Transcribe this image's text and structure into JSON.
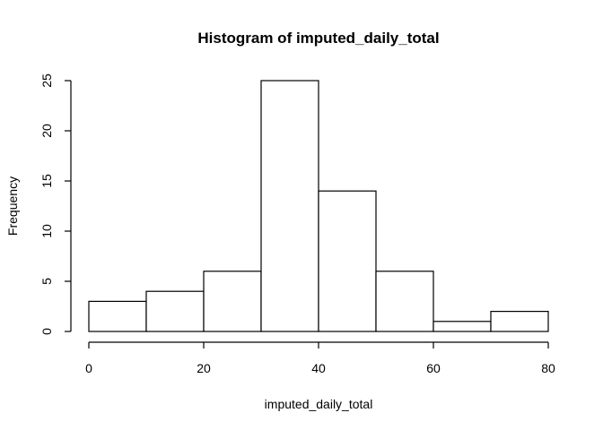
{
  "chart_data": {
    "type": "bar",
    "title": "Histogram of imputed_daily_total",
    "xlabel": "imputed_daily_total",
    "ylabel": "Frequency",
    "bins": [
      {
        "start": 0,
        "end": 10,
        "count": 3
      },
      {
        "start": 10,
        "end": 20,
        "count": 4
      },
      {
        "start": 20,
        "end": 30,
        "count": 6
      },
      {
        "start": 30,
        "end": 40,
        "count": 25
      },
      {
        "start": 40,
        "end": 50,
        "count": 14
      },
      {
        "start": 50,
        "end": 60,
        "count": 6
      },
      {
        "start": 60,
        "end": 70,
        "count": 1
      },
      {
        "start": 70,
        "end": 80,
        "count": 2
      }
    ],
    "xlim": [
      0,
      80
    ],
    "ylim": [
      0,
      25
    ],
    "xticks": [
      0,
      20,
      40,
      60,
      80
    ],
    "yticks": [
      0,
      5,
      10,
      15,
      20,
      25
    ],
    "grid": false,
    "bar_fill": "#ffffff",
    "bar_stroke": "#000000"
  }
}
